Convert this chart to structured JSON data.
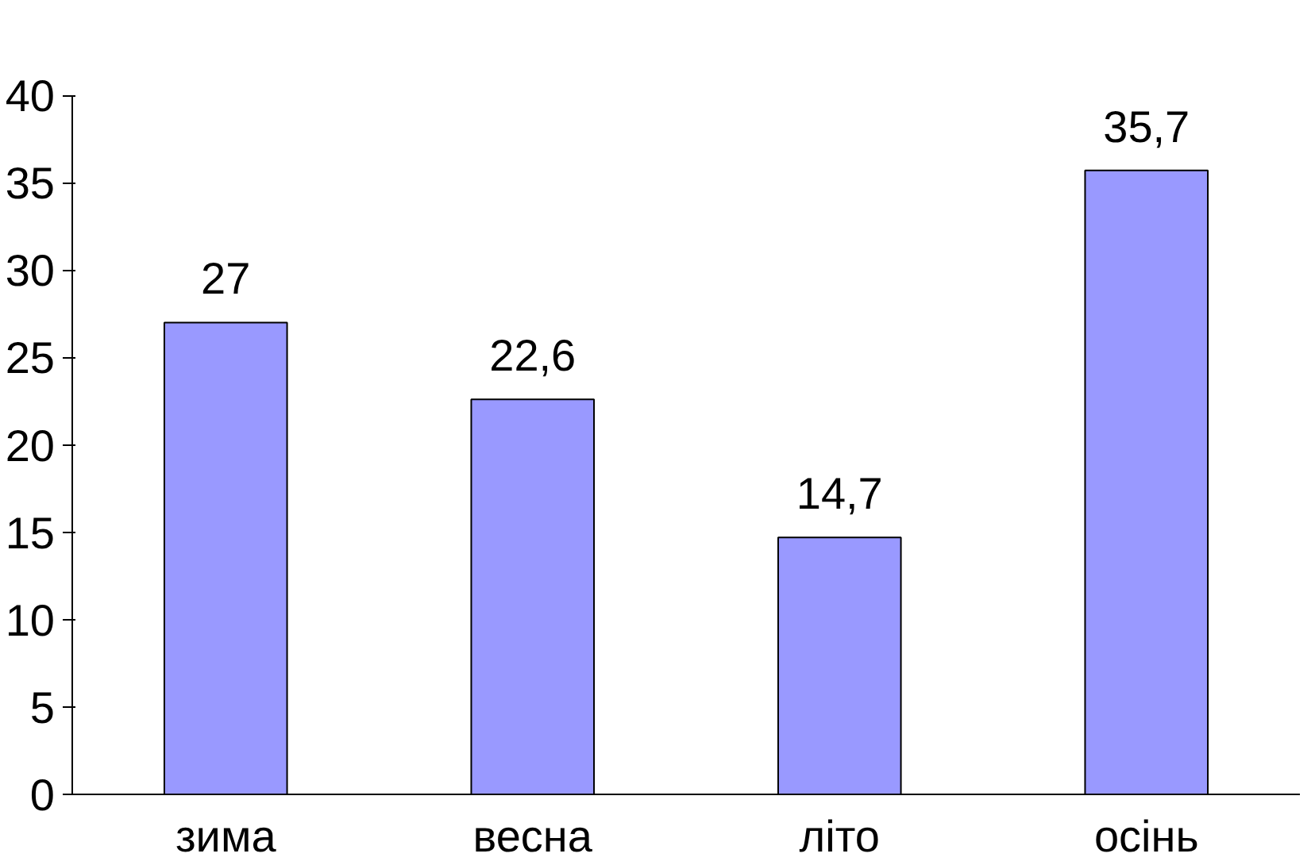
{
  "chart_data": {
    "type": "bar",
    "categories": [
      "зима",
      "весна",
      "літо",
      "осінь"
    ],
    "values": [
      27,
      22.6,
      14.7,
      35.7
    ],
    "value_labels": [
      "27",
      "22,6",
      "14,7",
      "35,7"
    ],
    "color": "#9999ff",
    "ylim": [
      0,
      40
    ],
    "yticks": [
      0,
      5,
      10,
      15,
      20,
      25,
      30,
      35,
      40
    ],
    "grid": false
  }
}
